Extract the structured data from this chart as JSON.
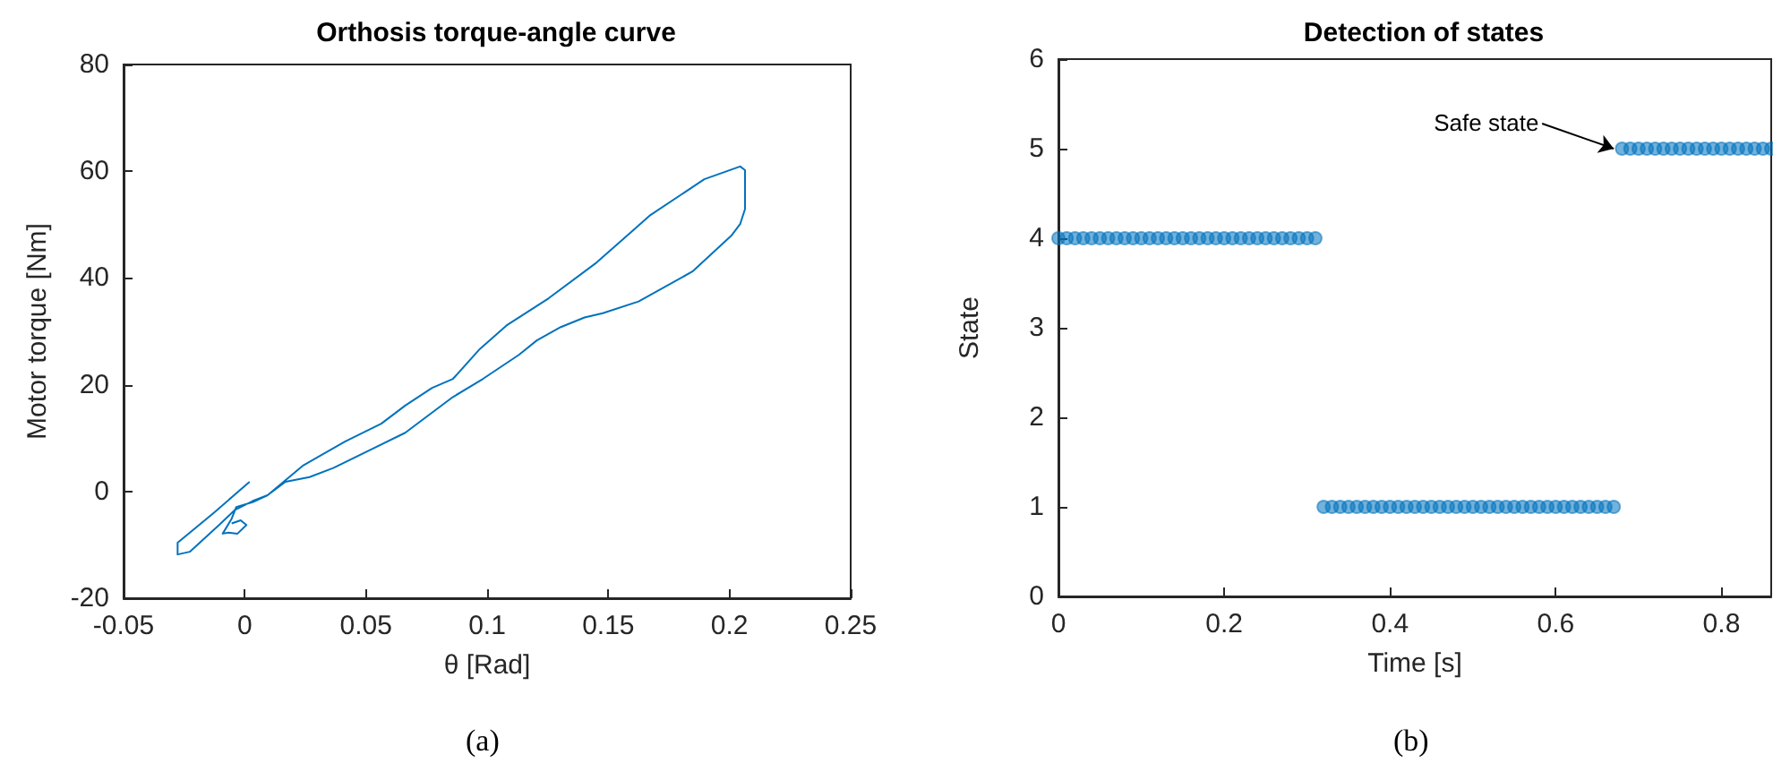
{
  "chart_data": [
    {
      "type": "line",
      "title": "Orthosis torque-angle curve",
      "xlabel": "θ [Rad]",
      "ylabel": "Motor torque [Nm]",
      "color": "#0072bd",
      "marker": "none",
      "x": [
        0.002,
        -0.0128,
        -0.0277,
        -0.0277,
        -0.0227,
        -0.0104,
        -0.0042,
        0.0032,
        0.0094,
        0.0242,
        0.0415,
        0.0563,
        0.0662,
        0.0773,
        0.0859,
        0.097,
        0.108,
        0.1254,
        0.1452,
        0.1674,
        0.1896,
        0.2044,
        0.2064,
        0.2064,
        0.2044,
        0.2007,
        0.1847,
        0.1625,
        0.1477,
        0.1402,
        0.1304,
        0.1205,
        0.1131,
        0.0983,
        0.0859,
        0.0662,
        0.0514,
        0.0365,
        0.0267,
        0.0168,
        0.0094,
        0.0032,
        -0.0035,
        -0.0054,
        -0.0091,
        -0.0067,
        -0.003,
        0.0007,
        -0.0017,
        -0.0054
      ],
      "values": [
        1.8,
        -4.0,
        -9.6,
        -11.8,
        -11.3,
        -6.2,
        -3.5,
        -1.8,
        -0.7,
        4.9,
        9.4,
        12.7,
        16.1,
        19.4,
        21.1,
        26.7,
        31.1,
        36.2,
        42.9,
        51.8,
        58.5,
        60.9,
        60.2,
        52.9,
        50.1,
        47.9,
        41.2,
        35.6,
        33.4,
        32.6,
        30.8,
        28.3,
        25.6,
        21.1,
        17.7,
        11.0,
        7.7,
        4.4,
        2.7,
        1.8,
        -0.7,
        -2.0,
        -2.9,
        -5.1,
        -7.9,
        -7.7,
        -7.9,
        -6.3,
        -5.4,
        -6.0
      ],
      "xlim": [
        -0.05,
        0.25
      ],
      "xticks": [
        -0.05,
        0,
        0.05,
        0.1,
        0.15,
        0.2,
        0.25
      ],
      "ylim": [
        -20,
        80
      ],
      "yticks": [
        -20,
        0,
        20,
        40,
        60,
        80
      ],
      "annotations": [
        "(a)"
      ]
    },
    {
      "type": "scatter",
      "title": "Detection of states",
      "xlabel": "Time [s]",
      "ylabel": "State",
      "color": "#0072bd",
      "marker": "circle",
      "x": [
        0,
        0.01,
        0.02,
        0.03,
        0.04,
        0.05,
        0.06,
        0.07,
        0.08,
        0.09,
        0.1,
        0.11,
        0.12,
        0.13,
        0.14,
        0.15,
        0.16,
        0.17,
        0.18,
        0.19,
        0.2,
        0.21,
        0.22,
        0.23,
        0.24,
        0.25,
        0.26,
        0.27,
        0.28,
        0.29,
        0.3,
        0.31,
        0.32,
        0.33,
        0.34,
        0.35,
        0.36,
        0.37,
        0.38,
        0.39,
        0.4,
        0.41,
        0.42,
        0.43,
        0.44,
        0.45,
        0.46,
        0.47,
        0.48,
        0.49,
        0.5,
        0.51,
        0.52,
        0.53,
        0.54,
        0.55,
        0.56,
        0.57,
        0.58,
        0.59,
        0.6,
        0.61,
        0.62,
        0.63,
        0.64,
        0.65,
        0.66,
        0.67,
        0.68,
        0.69,
        0.7,
        0.71,
        0.72,
        0.73,
        0.74,
        0.75,
        0.76,
        0.77,
        0.78,
        0.79,
        0.8,
        0.81,
        0.82,
        0.83,
        0.84,
        0.85,
        0.86
      ],
      "values": [
        4,
        4,
        4,
        4,
        4,
        4,
        4,
        4,
        4,
        4,
        4,
        4,
        4,
        4,
        4,
        4,
        4,
        4,
        4,
        4,
        4,
        4,
        4,
        4,
        4,
        4,
        4,
        4,
        4,
        4,
        4,
        4,
        1,
        1,
        1,
        1,
        1,
        1,
        1,
        1,
        1,
        1,
        1,
        1,
        1,
        1,
        1,
        1,
        1,
        1,
        1,
        1,
        1,
        1,
        1,
        1,
        1,
        1,
        1,
        1,
        1,
        1,
        1,
        1,
        1,
        1,
        1,
        1,
        5,
        5,
        5,
        5,
        5,
        5,
        5,
        5,
        5,
        5,
        5,
        5,
        5,
        5,
        5,
        5,
        5,
        5,
        5
      ],
      "xlim": [
        0,
        0.86
      ],
      "xticks": [
        0,
        0.2,
        0.4,
        0.6,
        0.8
      ],
      "ylim": [
        0,
        6
      ],
      "yticks": [
        0,
        1,
        2,
        3,
        4,
        5,
        6
      ],
      "annotations": [
        "(b)",
        {
          "text": "Safe state",
          "x": 0.67,
          "y": 5
        }
      ]
    }
  ]
}
